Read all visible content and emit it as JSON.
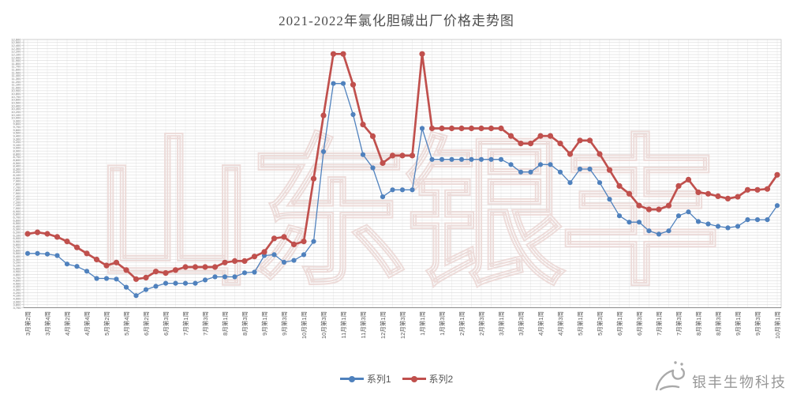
{
  "chart_data": {
    "type": "line",
    "title": "2021-2022年氯化胆碱出厂价格走势图",
    "grid": true,
    "legend_position": "bottom",
    "x_label_every_n_points": 2,
    "x_labels": [
      "3月第2周",
      "3月第4周",
      "4月第2周",
      "4月第4周",
      "5月第2周",
      "5月第4周",
      "6月第2周",
      "6月第3周",
      "7月第1周",
      "7月第3周",
      "8月第1周",
      "8月第3周",
      "9月第1周",
      "9月第3周",
      "10月第1周",
      "10月第3周",
      "11月第1周",
      "11月第3周",
      "12月第1周",
      "12月第3周",
      "1月第1周",
      "1月第3周",
      "2月第1周",
      "2月第3周",
      "3月第1周",
      "3月第3周",
      "4月第1周",
      "4月第3周",
      "5月第1周",
      "5月第3周",
      "6月第1周",
      "6月第3周",
      "7月第1周",
      "7月第3周",
      "8月第1周",
      "8月第3周",
      "9月第1周",
      "9月第3周",
      "10月第1周"
    ],
    "y_axis": {
      "min": 3700,
      "max": 12600,
      "tick_step": 100,
      "format": "#,##0"
    },
    "series": [
      {
        "name": "系列1",
        "color": "#4F81BD",
        "marker": "circle",
        "values": [
          5500,
          5500,
          5480,
          5430,
          5150,
          5070,
          4910,
          4670,
          4670,
          4650,
          4380,
          4100,
          4300,
          4410,
          4510,
          4510,
          4510,
          4510,
          4620,
          4725,
          4725,
          4725,
          4860,
          4880,
          5430,
          5460,
          5210,
          5270,
          5460,
          5900,
          8880,
          11140,
          11140,
          10110,
          8780,
          8340,
          7380,
          7610,
          7610,
          7610,
          9650,
          8620,
          8620,
          8620,
          8620,
          8620,
          8620,
          8620,
          8620,
          8450,
          8200,
          8200,
          8450,
          8450,
          8200,
          7850,
          8300,
          8300,
          7850,
          7300,
          6750,
          6540,
          6540,
          6250,
          6140,
          6250,
          6750,
          6880,
          6560,
          6480,
          6400,
          6350,
          6400,
          6620,
          6620,
          6620,
          7090
        ]
      },
      {
        "name": "系列2",
        "color": "#C0504D",
        "marker": "circle",
        "values": [
          6150,
          6200,
          6150,
          6050,
          5900,
          5700,
          5500,
          5300,
          5100,
          5200,
          4950,
          4650,
          4700,
          4900,
          4850,
          4950,
          5050,
          5050,
          5050,
          5050,
          5200,
          5250,
          5250,
          5400,
          5550,
          6000,
          6050,
          5800,
          5900,
          7980,
          10080,
          12120,
          12120,
          11100,
          9780,
          9390,
          8500,
          8750,
          8750,
          8750,
          12120,
          9650,
          9650,
          9650,
          9650,
          9650,
          9650,
          9650,
          9650,
          9400,
          9150,
          9150,
          9400,
          9400,
          9150,
          8800,
          9250,
          9250,
          8800,
          8270,
          7740,
          7480,
          7090,
          6960,
          6960,
          7090,
          7740,
          7950,
          7530,
          7480,
          7400,
          7320,
          7380,
          7610,
          7610,
          7640,
          8110
        ]
      }
    ]
  },
  "watermarks": {
    "center_text": "山东银丰",
    "corner_text": "银丰生物科技",
    "corner_logo": "hand-logo"
  }
}
